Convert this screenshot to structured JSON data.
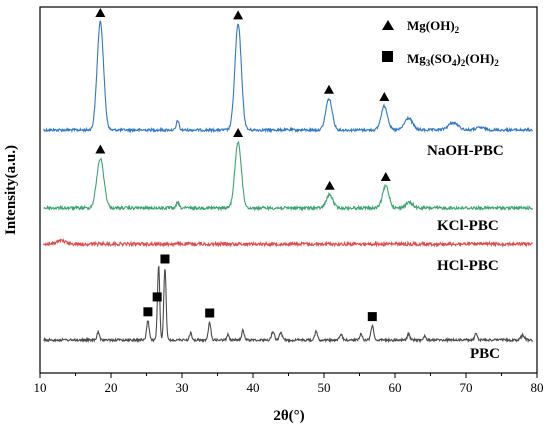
{
  "chart_data": {
    "type": "line",
    "xlabel": "2θ(°)",
    "ylabel": "Intensity(a.u.)",
    "xlim": [
      10,
      80
    ],
    "xticks": [
      10,
      20,
      30,
      40,
      50,
      60,
      70,
      80
    ],
    "yticks_shown": false,
    "legend": {
      "position": "top-right",
      "entries": [
        {
          "marker": "triangle",
          "label": "Mg(OH)",
          "sub": "2"
        },
        {
          "marker": "square",
          "label_parts": [
            {
              "t": "Mg"
            },
            {
              "t": "3",
              "sub": true
            },
            {
              "t": "(SO"
            },
            {
              "t": "4",
              "sub": true
            },
            {
              "t": ")"
            },
            {
              "t": "2",
              "sub": true
            },
            {
              "t": "(OH)"
            },
            {
              "t": "2",
              "sub": true
            }
          ]
        }
      ]
    },
    "series": [
      {
        "name": "NaOH-PBC",
        "color": "#2b78cc",
        "baseline": 0.08,
        "peaks": [
          {
            "x": 18.5,
            "h": 0.9,
            "w": 0.45
          },
          {
            "x": 29.4,
            "h": 0.08,
            "w": 0.18
          },
          {
            "x": 37.9,
            "h": 0.88,
            "w": 0.45
          },
          {
            "x": 50.7,
            "h": 0.26,
            "w": 0.45
          },
          {
            "x": 58.5,
            "h": 0.2,
            "w": 0.45
          },
          {
            "x": 61.9,
            "h": 0.1,
            "w": 0.55
          },
          {
            "x": 68.2,
            "h": 0.06,
            "w": 0.7
          },
          {
            "x": 72.0,
            "h": 0.02,
            "w": 0.6
          }
        ],
        "markers": [
          {
            "x": 18.5,
            "type": "triangle"
          },
          {
            "x": 37.9,
            "type": "triangle"
          },
          {
            "x": 50.7,
            "type": "triangle"
          },
          {
            "x": 58.5,
            "type": "triangle"
          }
        ]
      },
      {
        "name": "KCl-PBC",
        "color": "#3aa56e",
        "baseline": 0.06,
        "peaks": [
          {
            "x": 18.5,
            "h": 0.45,
            "w": 0.5
          },
          {
            "x": 29.4,
            "h": 0.05,
            "w": 0.18
          },
          {
            "x": 37.9,
            "h": 0.6,
            "w": 0.45
          },
          {
            "x": 50.8,
            "h": 0.12,
            "w": 0.45
          },
          {
            "x": 58.7,
            "h": 0.2,
            "w": 0.45
          },
          {
            "x": 62.0,
            "h": 0.05,
            "w": 0.5
          }
        ],
        "markers": [
          {
            "x": 18.5,
            "type": "triangle"
          },
          {
            "x": 37.9,
            "type": "triangle"
          },
          {
            "x": 50.8,
            "type": "triangle"
          },
          {
            "x": 58.7,
            "type": "triangle"
          }
        ]
      },
      {
        "name": "HCl-PBC",
        "color": "#e04a4a",
        "baseline": 0.12,
        "peaks": [
          {
            "x": 13.0,
            "h": 0.1,
            "w": 0.6
          }
        ],
        "markers": []
      },
      {
        "name": "PBC",
        "color": "#4a4a4a",
        "baseline": 0.05,
        "peaks": [
          {
            "x": 18.2,
            "h": 0.07,
            "w": 0.15
          },
          {
            "x": 25.2,
            "h": 0.16,
            "w": 0.18
          },
          {
            "x": 26.7,
            "h": 0.62,
            "w": 0.16
          },
          {
            "x": 27.6,
            "h": 0.6,
            "w": 0.16
          },
          {
            "x": 31.2,
            "h": 0.06,
            "w": 0.15
          },
          {
            "x": 33.9,
            "h": 0.15,
            "w": 0.18
          },
          {
            "x": 36.5,
            "h": 0.05,
            "w": 0.15
          },
          {
            "x": 38.6,
            "h": 0.08,
            "w": 0.18
          },
          {
            "x": 42.8,
            "h": 0.07,
            "w": 0.2
          },
          {
            "x": 43.9,
            "h": 0.06,
            "w": 0.2
          },
          {
            "x": 48.9,
            "h": 0.07,
            "w": 0.18
          },
          {
            "x": 52.4,
            "h": 0.05,
            "w": 0.18
          },
          {
            "x": 55.2,
            "h": 0.05,
            "w": 0.18
          },
          {
            "x": 56.8,
            "h": 0.12,
            "w": 0.2
          },
          {
            "x": 61.9,
            "h": 0.05,
            "w": 0.18
          },
          {
            "x": 64.2,
            "h": 0.03,
            "w": 0.18
          },
          {
            "x": 71.4,
            "h": 0.05,
            "w": 0.18
          },
          {
            "x": 78.0,
            "h": 0.04,
            "w": 0.25
          }
        ],
        "markers": [
          {
            "x": 25.2,
            "type": "square"
          },
          {
            "x": 26.5,
            "type": "square"
          },
          {
            "x": 27.6,
            "type": "square"
          },
          {
            "x": 33.9,
            "type": "square"
          },
          {
            "x": 56.8,
            "type": "square"
          }
        ]
      }
    ]
  }
}
